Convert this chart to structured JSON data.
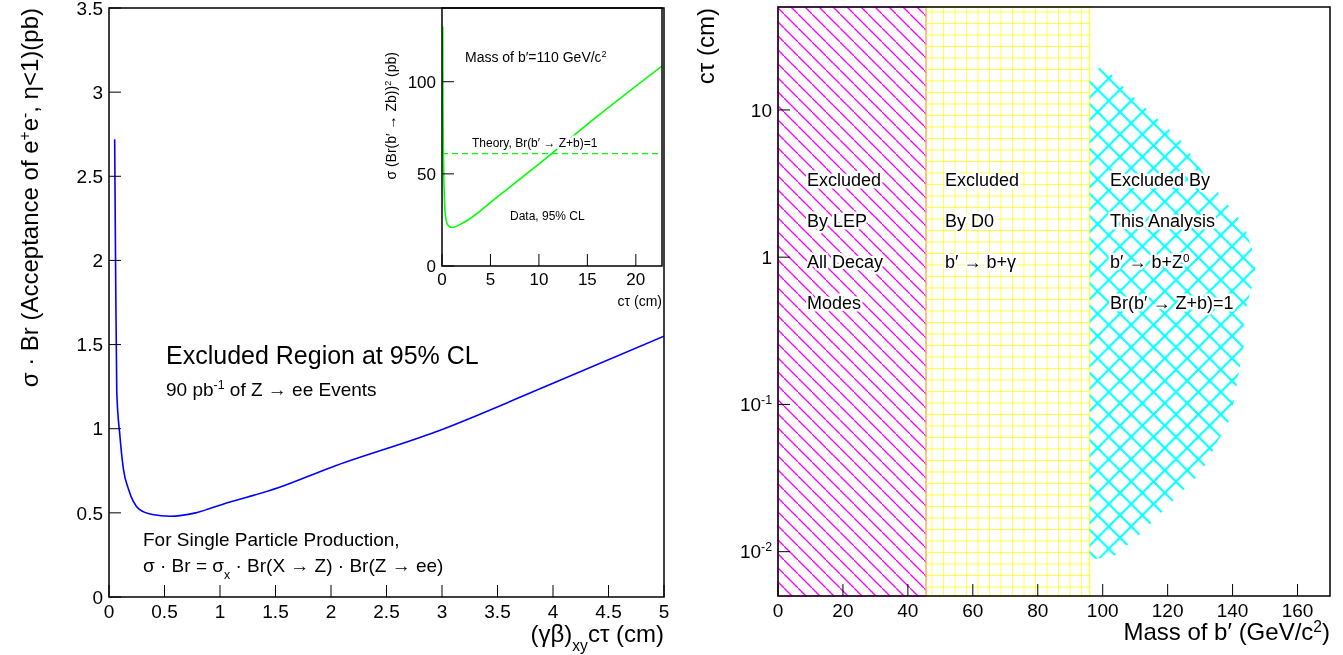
{
  "chart_data": [
    {
      "type": "line",
      "xlabel": "(γβ)$_{xy}$cτ (cm)",
      "ylabel": "σ · Br (Acceptance of e$^{+}$e$^{-}$, η<1)(pb)",
      "xlim": [
        0,
        5
      ],
      "ylim": [
        0,
        3.5
      ],
      "xticks": [
        0,
        0.5,
        1,
        1.5,
        2,
        2.5,
        3,
        3.5,
        4,
        4.5,
        5
      ],
      "yticks": [
        0,
        0.5,
        1,
        1.5,
        2,
        2.5,
        3,
        3.5
      ],
      "annotations": [
        "Excluded Region at 95% CL",
        "90 pb$^{-1}$ of Z → ee Events",
        "For Single Particle Production,",
        "σ · Br = σ$_{x}$ · Br(X → Z) · Br(Z → ee)"
      ],
      "series": [
        {
          "color": "#0000ff",
          "x": [
            0.051,
            0.059,
            0.07,
            0.098,
            0.13,
            0.176,
            0.274,
            0.39,
            0.55,
            0.78,
            1.02,
            1.53,
            2.0,
            2.94,
            4.0,
            5.0
          ],
          "values": [
            2.72,
            2.0,
            1.22,
            0.96,
            0.76,
            0.64,
            0.52,
            0.49,
            0.48,
            0.5,
            0.55,
            0.65,
            0.77,
            0.98,
            1.27,
            1.55
          ]
        }
      ]
    },
    {
      "type": "line",
      "xlabel": "cτ (cm)",
      "ylabel": "σ (Br(b′ → Zb))$^{2}$ (pb)",
      "xlim": [
        0,
        22.7
      ],
      "ylim": [
        0,
        140
      ],
      "xticks": [
        0,
        5,
        10,
        15,
        20
      ],
      "yticks": [
        0,
        50,
        100
      ],
      "annotations": [
        "Mass of b′=110 GeV/c$^{2}$",
        "Data, 95% CL",
        "Theory, Br(b′ → Z+b)=1"
      ],
      "ref_lines": [
        {
          "axis": "y",
          "value": 61,
          "color": "#00ff00",
          "line_style": "dashed"
        }
      ],
      "series": [
        {
          "color": "#00ff00",
          "x": [
            0.08,
            0.1,
            0.17,
            0.34,
            0.58,
            1.03,
            2.23,
            5.66,
            10.46,
            15.95,
            22.7
          ],
          "values": [
            130,
            90,
            53.6,
            28.2,
            22.4,
            20.9,
            23.6,
            37.3,
            57.3,
            80.9,
            108.5
          ]
        }
      ]
    },
    {
      "type": "area",
      "xlabel": "Mass of b′ (GeV/c$^{2}$)",
      "ylabel": "cτ (cm)",
      "log": true,
      "xlim": [
        0,
        170
      ],
      "ylim": [
        0.005,
        50
      ],
      "xticks": [
        0,
        20,
        40,
        60,
        80,
        100,
        120,
        140,
        160
      ],
      "yticks": [
        {
          "value": 0.01,
          "label": "10$^{-2}$"
        },
        {
          "value": 0.1,
          "label": "10$^{-1}$"
        },
        1,
        10
      ],
      "annotations": [
        "Excluded\nBy LEP\nAll Decay\nModes",
        "Excluded\nBy D0\nb′ → b+γ",
        "Excluded By\nThis Analysis\nb′ → b+Z$^{0}$\nBr(b′ → Z+b)=1"
      ],
      "bands": [
        {
          "axis": "x",
          "from": 0,
          "to": 45.6,
          "color": "#ff00ff"
        },
        {
          "axis": "x",
          "from": 45.6,
          "to": 96,
          "color": "#ffff00"
        }
      ],
      "series": [
        {
          "color": "#00ffff",
          "x": [
            96,
            99.8,
            108.8,
            124.1,
            133.1,
            143.4,
            146.9,
            146.9,
            143.4,
            143.4,
            140.8,
            139.5,
            130.5,
            111.3,
            103.6,
            96
          ],
          "values": [
            16.5,
            20.2,
            12.7,
            6.2,
            3.2,
            1.67,
            1,
            0.76,
            0.39,
            0.25,
            0.12,
            0.082,
            0.035,
            0.013,
            0.0094,
            0.0088
          ]
        }
      ]
    }
  ]
}
